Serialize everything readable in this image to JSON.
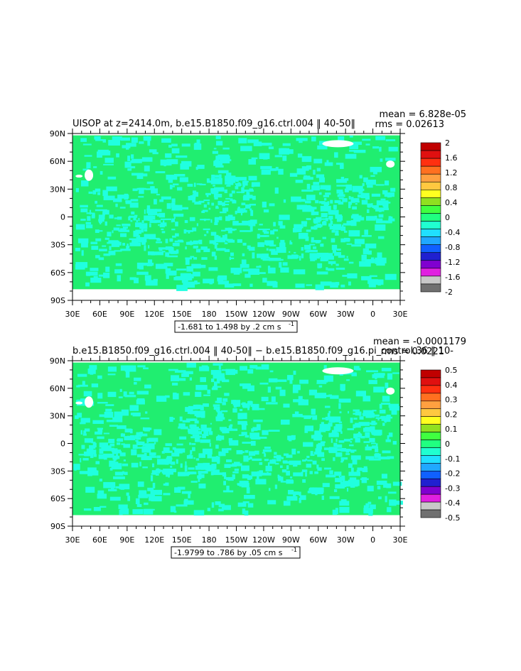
{
  "chart_data": [
    {
      "type": "heatmap",
      "title": "UISOP at z=2414.0m, b.e15.B1850.f09_g16.ctrl.004 ‖ 40-50‖",
      "mean_text": "mean = 6.828e-05",
      "rms_text": "rms = 0.02613",
      "range_text": "-1.681 to 1.498 by .2 cm s",
      "range_sup": "-1",
      "x_ticks": [
        "30E",
        "60E",
        "90E",
        "120E",
        "150E",
        "180",
        "150W",
        "120W",
        "90W",
        "60W",
        "30W",
        "0",
        "30E"
      ],
      "y_ticks": [
        "90N",
        "60N",
        "30N",
        "0",
        "30S",
        "60S",
        "90S"
      ],
      "colorbar_labels": [
        "2",
        "1.6",
        "1.2",
        "0.8",
        "0.4",
        "0",
        "-0.4",
        "-0.8",
        "-1.2",
        "-1.6",
        "-2"
      ],
      "colorbar_colors": [
        "#c00000",
        "#e01010",
        "#ff3010",
        "#ff7020",
        "#ffa040",
        "#ffc840",
        "#ffff20",
        "#90e020",
        "#40ff40",
        "#20ff80",
        "#20ffd0",
        "#20e0ff",
        "#20a8ff",
        "#1060ff",
        "#2020d0",
        "#8000d0",
        "#e020e0",
        "#c8c8c8",
        "#707070"
      ],
      "field_colors": {
        "zero": "#20ee70",
        "negative": "#20ffe0"
      }
    },
    {
      "type": "heatmap",
      "title": "b.e15.B1850.f09_g16.ctrl.004 ‖ 40-50‖ − b.e15.B1850.f09_g16.pi_control.36 ‖ 10-",
      "mean_text": "mean = -0.0001179",
      "rms_text": "rms = 0.0221",
      "range_text": "-1.9799 to .786 by .05 cm s",
      "range_sup": "-1",
      "x_ticks": [
        "30E",
        "60E",
        "90E",
        "120E",
        "150E",
        "180",
        "150W",
        "120W",
        "90W",
        "60W",
        "30W",
        "0",
        "30E"
      ],
      "y_ticks": [
        "90N",
        "60N",
        "30N",
        "0",
        "30S",
        "60S",
        "90S"
      ],
      "colorbar_labels": [
        "0.5",
        "0.4",
        "0.3",
        "0.2",
        "0.1",
        "0",
        "-0.1",
        "-0.2",
        "-0.3",
        "-0.4",
        "-0.5"
      ],
      "colorbar_colors": [
        "#c00000",
        "#e01010",
        "#ff3010",
        "#ff7020",
        "#ffa040",
        "#ffc840",
        "#ffff20",
        "#90e020",
        "#40ff40",
        "#20ff80",
        "#20ffd0",
        "#20e0ff",
        "#20a8ff",
        "#1060ff",
        "#2020d0",
        "#8000d0",
        "#e020e0",
        "#c8c8c8",
        "#707070"
      ],
      "field_colors": {
        "zero": "#20ee70",
        "negative": "#20ffe0"
      }
    }
  ]
}
